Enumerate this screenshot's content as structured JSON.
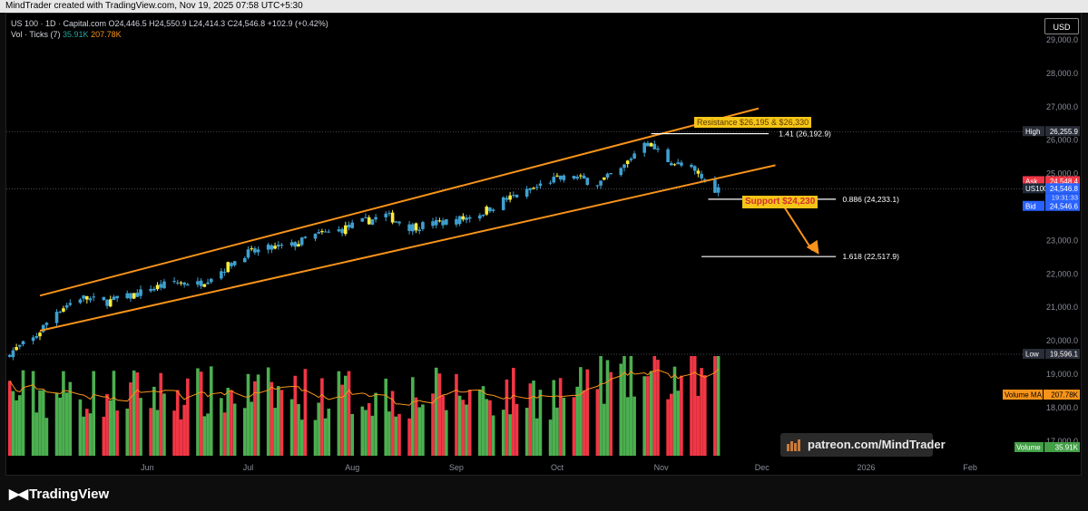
{
  "header": {
    "attribution": "MindTrader created with TradingView.com, Nov 19, 2025 07:58 UTC+5:30"
  },
  "legend": {
    "symbol_line": "US 100 · 1D · Capital.com  O24,446.5  H24,550.9  L24,414.3  C24,546.8  +102.9 (+0.42%)",
    "volume_prefix": "Vol · Ticks (7)",
    "volume_value": "35.91K",
    "volume_ma": "207.78K"
  },
  "currency_button": "USD",
  "price_axis": {
    "ticks": [
      "29,000.0",
      "28,000.0",
      "27,000.0",
      "26,000.0",
      "25,000.0",
      "24,000.0",
      "23,000.0",
      "22,000.0",
      "21,000.0",
      "20,000.0",
      "19,000.0",
      "18,000.0",
      "17,000.0"
    ],
    "labels": {
      "high_label": "High",
      "high_value": "26,255.9",
      "ask_label": "Ask",
      "ask_value": "24,548.4",
      "symbol_label": "US100",
      "last_value": "24,546.8",
      "countdown": "19:31:33",
      "bid_label": "Bid",
      "bid_value": "24,546.6",
      "low_label": "Low",
      "low_value": "19,596.1",
      "vol_ma_label": "Volume MA",
      "vol_ma_value": "207.78K",
      "vol_label": "Volume",
      "vol_value": "35.91K"
    }
  },
  "time_axis": {
    "ticks": [
      "Jun",
      "Jul",
      "Aug",
      "Sep",
      "Oct",
      "Nov",
      "Dec",
      "2026",
      "Feb"
    ]
  },
  "annotations": {
    "resistance": "Resistance $26,195 & $26,330",
    "support": "Support $24,230",
    "fib_141": "1.41 (26,192.9)",
    "fib_0886": "0.886 (24,233.1)",
    "fib_1618": "1.618 (22,517.9)"
  },
  "watermark": "patreon.com/MindTrader",
  "branding": "TradingView",
  "colors": {
    "up": "#4caf50",
    "down": "#f23645",
    "highlight": "#ffeb3b",
    "channel": "#f7931a",
    "volume_ma": "#f7931a"
  },
  "chart_data": {
    "type": "candlestick",
    "title": "US 100 · 1D · Capital.com",
    "y_range": [
      16600,
      29200
    ],
    "x_range": [
      "2025-04-20",
      "2026-02-15"
    ],
    "close_approx": [
      [
        "2025-04-21",
        19650
      ],
      [
        "2025-04-28",
        20050
      ],
      [
        "2025-05-05",
        20900
      ],
      [
        "2025-05-12",
        21300
      ],
      [
        "2025-05-19",
        21150
      ],
      [
        "2025-05-26",
        21300
      ],
      [
        "2025-06-02",
        21550
      ],
      [
        "2025-06-09",
        21750
      ],
      [
        "2025-06-16",
        21700
      ],
      [
        "2025-06-23",
        22100
      ],
      [
        "2025-06-30",
        22600
      ],
      [
        "2025-07-07",
        22750
      ],
      [
        "2025-07-14",
        22850
      ],
      [
        "2025-07-21",
        23150
      ],
      [
        "2025-07-28",
        23300
      ],
      [
        "2025-08-04",
        23550
      ],
      [
        "2025-08-11",
        23750
      ],
      [
        "2025-08-18",
        23400
      ],
      [
        "2025-08-25",
        23500
      ],
      [
        "2025-09-01",
        23600
      ],
      [
        "2025-09-08",
        23800
      ],
      [
        "2025-09-15",
        24200
      ],
      [
        "2025-09-22",
        24450
      ],
      [
        "2025-09-29",
        24800
      ],
      [
        "2025-10-06",
        24900
      ],
      [
        "2025-10-13",
        24700
      ],
      [
        "2025-10-20",
        25100
      ],
      [
        "2025-10-27",
        26000
      ],
      [
        "2025-11-03",
        25400
      ],
      [
        "2025-11-10",
        25100
      ],
      [
        "2025-11-17",
        24546.8
      ]
    ],
    "levels": [
      {
        "name": "Resistance",
        "values": [
          26195,
          26330
        ]
      },
      {
        "name": "1.41",
        "value": 26192.9
      },
      {
        "name": "0.886",
        "value": 24233.1
      },
      {
        "name": "1.618",
        "value": 22517.9
      },
      {
        "name": "Support",
        "value": 24230
      }
    ]
  }
}
